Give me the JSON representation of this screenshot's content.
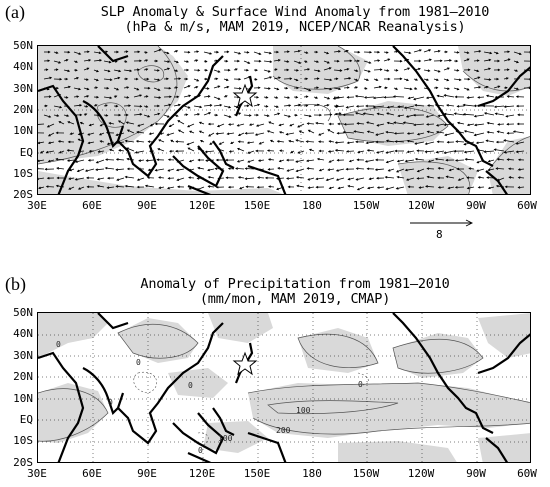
{
  "panel_a": {
    "letter": "(a)",
    "title_line1": "SLP Anomaly & Surface Wind Anomaly from 1981–2010",
    "title_line2": "(hPa & m/s, MAM 2019, NCEP/NCAR Reanalysis)",
    "lat_labels": [
      "50N",
      "40N",
      "30N",
      "20N",
      "10N",
      "EQ",
      "10S",
      "20S"
    ],
    "lon_labels": [
      "30E",
      "60E",
      "90E",
      "120E",
      "150E",
      "180",
      "150W",
      "120W",
      "90W",
      "60W"
    ],
    "reference_vector_label": "8",
    "shading_color": "#d9d9d9"
  },
  "panel_b": {
    "letter": "(b)",
    "title_line1": "Anomaly of Precipitation from 1981–2010",
    "title_line2": "(mm/mon, MAM 2019, CMAP)",
    "lat_labels": [
      "50N",
      "40N",
      "30N",
      "20N",
      "10N",
      "EQ",
      "10S",
      "20S"
    ],
    "lon_labels": [
      "30E",
      "60E",
      "90E",
      "120E",
      "150E",
      "180",
      "150W",
      "120W",
      "90W",
      "60W"
    ],
    "contour_labels": [
      "0",
      "0",
      "0",
      "0",
      "100",
      "200",
      "100",
      "0",
      "0"
    ],
    "shading_color": "#d9d9d9"
  },
  "marker": {
    "type": "star-icon"
  }
}
